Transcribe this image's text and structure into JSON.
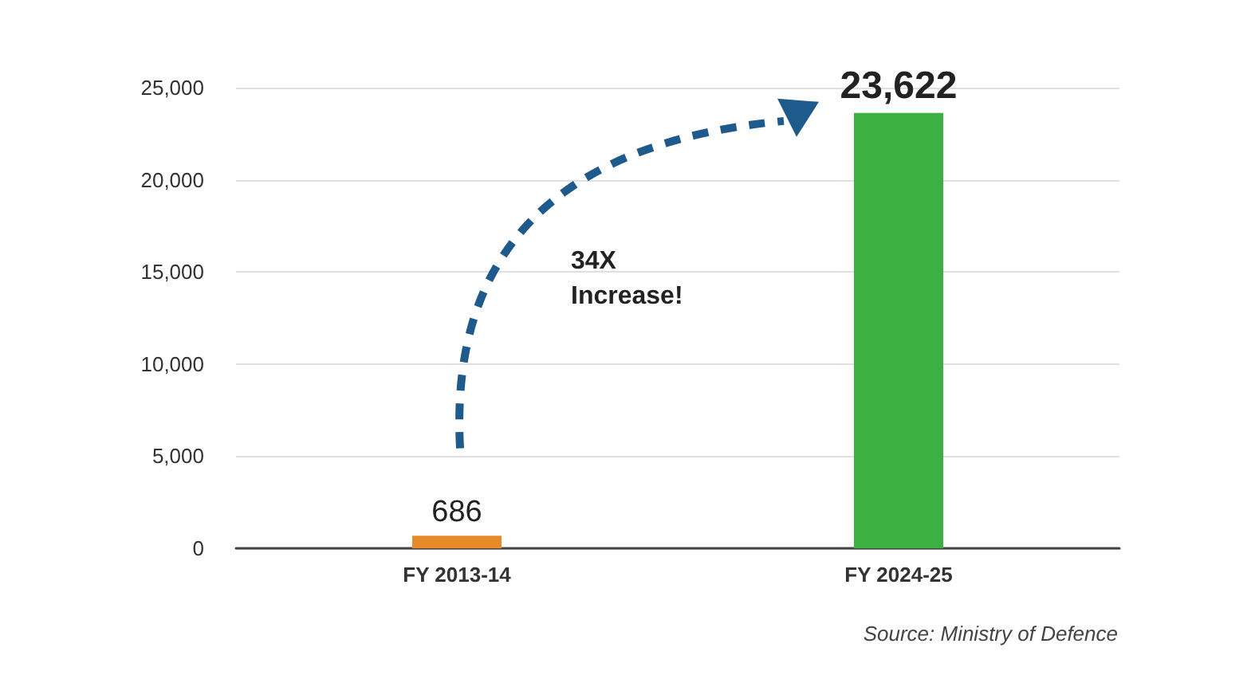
{
  "chart_data": {
    "type": "bar",
    "categories": [
      "FY 2013-14",
      "FY 2024-25"
    ],
    "values": [
      686,
      23622
    ],
    "colors": [
      "#e8892a",
      "#3cb043"
    ],
    "value_labels": [
      "686",
      "23,622"
    ],
    "ylim": [
      0,
      25000
    ],
    "yticks": [
      {
        "value": 0,
        "label": "0"
      },
      {
        "value": 5000,
        "label": "5,000"
      },
      {
        "value": 10000,
        "label": "10,000"
      },
      {
        "value": 15000,
        "label": "15,000"
      },
      {
        "value": 20000,
        "label": "20,000"
      },
      {
        "value": 25000,
        "label": "25,000"
      }
    ],
    "grid": "y",
    "annotations": [
      "34X\nIncrease!",
      "Source: Ministry of Defence"
    ]
  }
}
